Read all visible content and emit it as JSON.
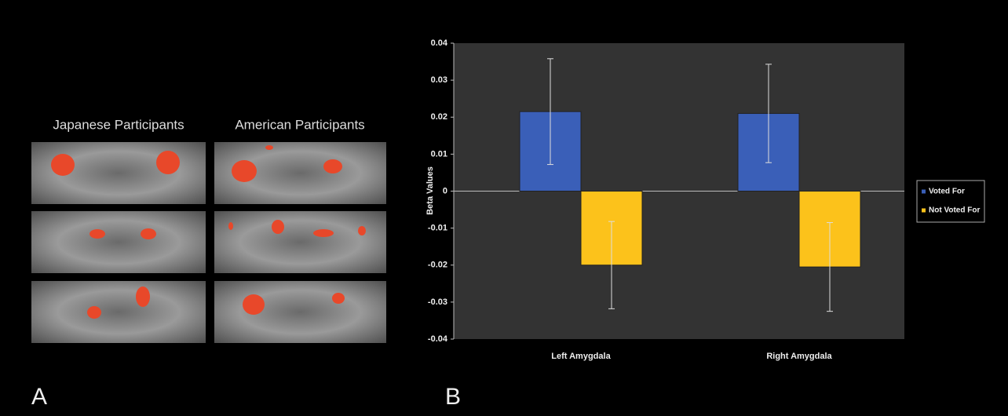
{
  "panels": {
    "a": {
      "label": "A",
      "columns": [
        "Japanese Participants",
        "American Participants"
      ]
    },
    "b": {
      "label": "B"
    }
  },
  "chart_data": {
    "type": "bar",
    "ylabel": "Beta Values",
    "categories": [
      "Left Amygdala",
      "Right Amygdala"
    ],
    "series": [
      {
        "name": "Voted For",
        "color": "#3a5fb8",
        "values": [
          0.0215,
          0.021
        ],
        "errors": [
          0.0143,
          0.0133
        ]
      },
      {
        "name": "Not Voted For",
        "color": "#fcc21b",
        "values": [
          -0.02,
          -0.0205
        ],
        "errors": [
          0.0118,
          0.012
        ]
      }
    ],
    "ylim": [
      -0.04,
      0.04
    ],
    "yticks": [
      -0.04,
      -0.03,
      -0.02,
      -0.01,
      0,
      0.01,
      0.02,
      0.03,
      0.04
    ],
    "legend": "right"
  }
}
